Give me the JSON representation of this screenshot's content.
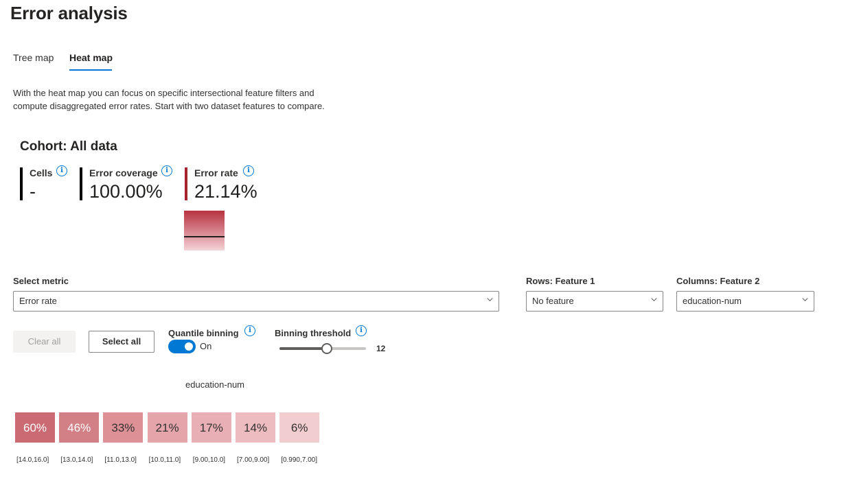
{
  "page": {
    "title": "Error analysis",
    "tabs": [
      {
        "label": "Tree map"
      },
      {
        "label": "Heat map"
      }
    ],
    "description_line1": "With the heat map you can focus on specific intersectional feature filters and",
    "description_line2": "compute disaggregated error rates. Start with two dataset features to compare."
  },
  "cohort": {
    "title": "Cohort: All data",
    "metrics": [
      {
        "label": "Cells",
        "value": "-",
        "color": "#000000"
      },
      {
        "label": "Error coverage",
        "value": "100.00%",
        "color": "#000000"
      },
      {
        "label": "Error rate",
        "value": "21.14%",
        "color": "#a4262c"
      }
    ],
    "error_rate_level": 0.2114
  },
  "controls": {
    "select_metric": {
      "label": "Select metric",
      "value": "Error rate"
    },
    "rows_feature": {
      "label": "Rows: Feature 1",
      "value": "No feature"
    },
    "columns_feature": {
      "label": "Columns: Feature 2",
      "value": "education-num"
    },
    "clear_all": "Clear all",
    "select_all": "Select all",
    "quantile_binning": {
      "label": "Quantile binning",
      "state": "On",
      "enabled": true
    },
    "binning_threshold": {
      "label": "Binning threshold",
      "value": "12",
      "level": 0.55
    }
  },
  "heatmap": {
    "axis_title": "education-num",
    "cells": [
      {
        "value": "60%",
        "label": "[14.0,16.0]",
        "color": "#cc6a73",
        "text_color": "#ffffff"
      },
      {
        "value": "46%",
        "label": "[13.0,14.0]",
        "color": "#d37f86",
        "text_color": "#ffffff"
      },
      {
        "value": "33%",
        "label": "[11.0,13.0]",
        "color": "#dd9096",
        "text_color": "#323130"
      },
      {
        "value": "21%",
        "label": "[10.0,11.0]",
        "color": "#e4a5aa",
        "text_color": "#323130"
      },
      {
        "value": "17%",
        "label": "[9.00,10.0]",
        "color": "#e8b0b4",
        "text_color": "#323130"
      },
      {
        "value": "14%",
        "label": "[7.00,9.00]",
        "color": "#ecbcc0",
        "text_color": "#323130"
      },
      {
        "value": "6%",
        "label": "[0.990,7.00]",
        "color": "#f2cdd0",
        "text_color": "#323130"
      }
    ]
  },
  "icons": {
    "info": "info-icon",
    "chevron": "chevron-down-icon"
  }
}
